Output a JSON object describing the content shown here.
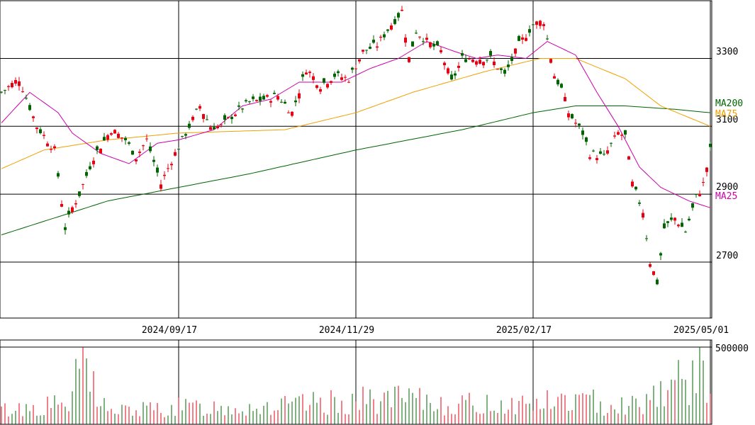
{
  "chart_data": {
    "type": "candlestick",
    "price_y_ticks": [
      "3300",
      "3100",
      "2900",
      "2700"
    ],
    "price_y_tick_values": [
      3300,
      3100,
      2900,
      2700
    ],
    "price_ylim": [
      2535,
      3470
    ],
    "x_tick_labels": [
      "2024/09/17",
      "2024/11/29",
      "2025/02/17",
      "2025/05/01"
    ],
    "x_tick_day_index": [
      50,
      100,
      150,
      200
    ],
    "volume_y_ticks": [
      "500000"
    ],
    "volume_ylim": [
      0,
      500000
    ],
    "legend": {
      "ma200": "MA200",
      "ma75": "MA75",
      "ma25": "MA25"
    },
    "colors": {
      "up": "#e60012",
      "down": "#006400",
      "ma25": "#cc00aa",
      "ma75": "#f0a000",
      "ma200": "#006400",
      "grid": "#000000"
    },
    "ohlc_anchors": [
      [
        0,
        3200
      ],
      [
        5,
        3240
      ],
      [
        10,
        3100
      ],
      [
        15,
        3030
      ],
      [
        18,
        2800
      ],
      [
        20,
        2860
      ],
      [
        22,
        2900
      ],
      [
        26,
        3010
      ],
      [
        31,
        3090
      ],
      [
        35,
        3060
      ],
      [
        38,
        3010
      ],
      [
        41,
        3060
      ],
      [
        45,
        2930
      ],
      [
        48,
        3000
      ],
      [
        52,
        3080
      ],
      [
        56,
        3160
      ],
      [
        59,
        3100
      ],
      [
        62,
        3100
      ],
      [
        66,
        3140
      ],
      [
        70,
        3170
      ],
      [
        74,
        3180
      ],
      [
        78,
        3190
      ],
      [
        82,
        3140
      ],
      [
        86,
        3270
      ],
      [
        90,
        3220
      ],
      [
        94,
        3250
      ],
      [
        98,
        3240
      ],
      [
        102,
        3320
      ],
      [
        106,
        3340
      ],
      [
        110,
        3400
      ],
      [
        113,
        3440
      ],
      [
        115,
        3300
      ],
      [
        117,
        3380
      ],
      [
        120,
        3350
      ],
      [
        124,
        3320
      ],
      [
        127,
        3230
      ],
      [
        130,
        3300
      ],
      [
        134,
        3300
      ],
      [
        138,
        3300
      ],
      [
        142,
        3250
      ],
      [
        146,
        3340
      ],
      [
        150,
        3400
      ],
      [
        153,
        3410
      ],
      [
        156,
        3250
      ],
      [
        158,
        3210
      ],
      [
        160,
        3140
      ],
      [
        164,
        3080
      ],
      [
        166,
        3020
      ],
      [
        170,
        3010
      ],
      [
        174,
        3080
      ],
      [
        176,
        3070
      ],
      [
        178,
        2930
      ],
      [
        181,
        2850
      ],
      [
        183,
        2700
      ],
      [
        185,
        2640
      ],
      [
        187,
        2800
      ],
      [
        190,
        2830
      ],
      [
        193,
        2790
      ],
      [
        196,
        2890
      ],
      [
        198,
        2930
      ],
      [
        200,
        3030
      ]
    ],
    "ma25_anchors": [
      [
        0,
        3110
      ],
      [
        8,
        3200
      ],
      [
        16,
        3140
      ],
      [
        20,
        3080
      ],
      [
        28,
        3020
      ],
      [
        36,
        2990
      ],
      [
        44,
        3050
      ],
      [
        50,
        3060
      ],
      [
        60,
        3090
      ],
      [
        68,
        3160
      ],
      [
        76,
        3180
      ],
      [
        84,
        3230
      ],
      [
        96,
        3230
      ],
      [
        104,
        3270
      ],
      [
        112,
        3300
      ],
      [
        120,
        3350
      ],
      [
        128,
        3320
      ],
      [
        134,
        3300
      ],
      [
        140,
        3310
      ],
      [
        148,
        3300
      ],
      [
        154,
        3350
      ],
      [
        162,
        3310
      ],
      [
        168,
        3200
      ],
      [
        174,
        3100
      ],
      [
        180,
        2980
      ],
      [
        186,
        2920
      ],
      [
        194,
        2880
      ],
      [
        200,
        2860
      ]
    ],
    "ma75_anchors": [
      [
        0,
        2975
      ],
      [
        12,
        3030
      ],
      [
        30,
        3060
      ],
      [
        50,
        3080
      ],
      [
        80,
        3090
      ],
      [
        100,
        3140
      ],
      [
        116,
        3200
      ],
      [
        136,
        3260
      ],
      [
        152,
        3300
      ],
      [
        162,
        3300
      ],
      [
        176,
        3240
      ],
      [
        186,
        3160
      ],
      [
        200,
        3100
      ]
    ],
    "ma200_anchors": [
      [
        0,
        2780
      ],
      [
        30,
        2880
      ],
      [
        50,
        2920
      ],
      [
        70,
        2960
      ],
      [
        100,
        3030
      ],
      [
        130,
        3090
      ],
      [
        150,
        3140
      ],
      [
        162,
        3160
      ],
      [
        176,
        3160
      ],
      [
        190,
        3150
      ],
      [
        200,
        3140
      ]
    ],
    "volume_anchors": [
      [
        0,
        100000
      ],
      [
        20,
        150000
      ],
      [
        22,
        500000
      ],
      [
        30,
        90000
      ],
      [
        50,
        120000
      ],
      [
        80,
        130000
      ],
      [
        96,
        160000
      ],
      [
        110,
        180000
      ],
      [
        130,
        140000
      ],
      [
        150,
        150000
      ],
      [
        160,
        170000
      ],
      [
        180,
        140000
      ],
      [
        185,
        250000
      ],
      [
        200,
        370000
      ]
    ]
  }
}
